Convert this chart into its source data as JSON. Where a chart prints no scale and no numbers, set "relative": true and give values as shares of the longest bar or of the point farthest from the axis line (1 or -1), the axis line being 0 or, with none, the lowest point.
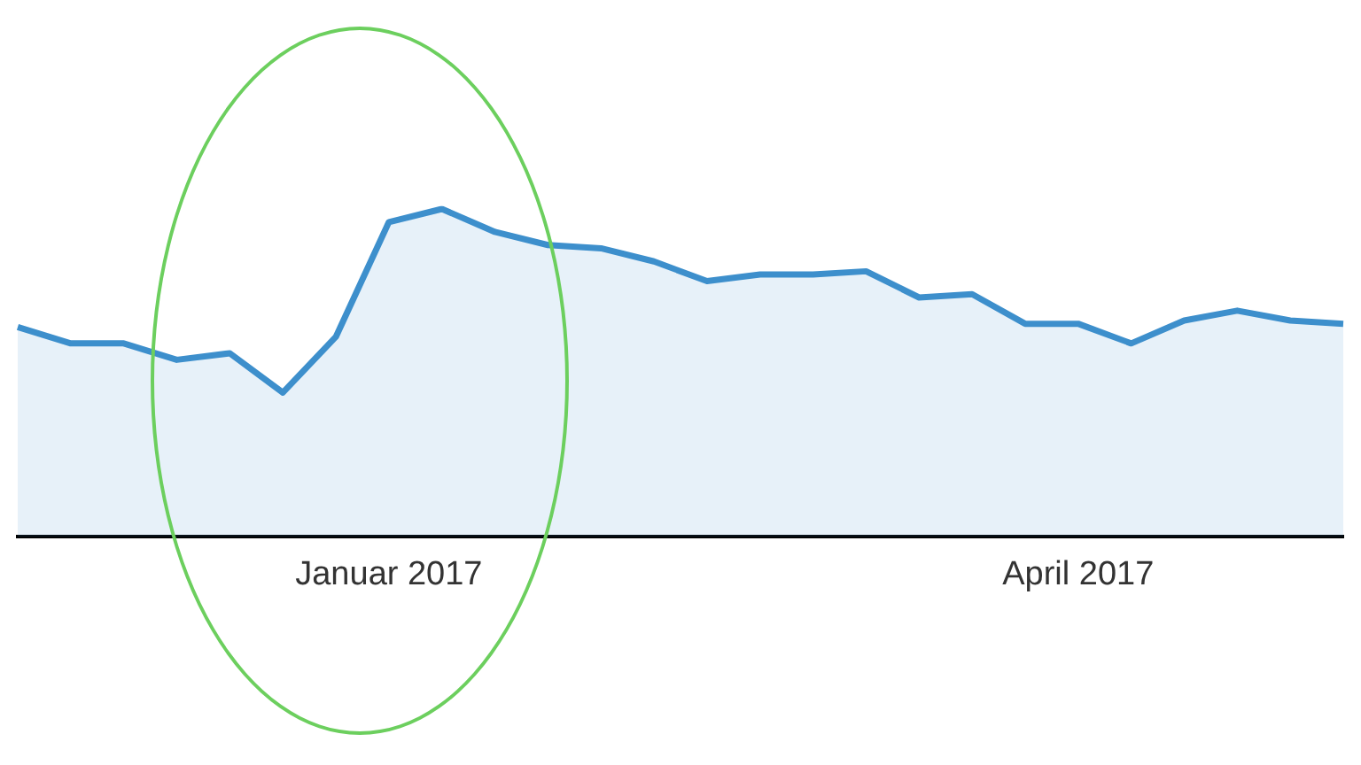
{
  "chart_data": {
    "type": "area",
    "relative": true,
    "legend": false,
    "categories": [
      null,
      null,
      null,
      null,
      null,
      null,
      null,
      "Januar 2017",
      null,
      null,
      null,
      null,
      null,
      null,
      null,
      null,
      null,
      null,
      null,
      null,
      "April 2017",
      null,
      null,
      null,
      null,
      null
    ],
    "series": [
      {
        "color": "#3d8fcc",
        "values": [
          0.64,
          0.59,
          0.59,
          0.54,
          0.56,
          0.44,
          0.61,
          0.96,
          1,
          0.93,
          0.89,
          0.88,
          0.84,
          0.78,
          0.8,
          0.8,
          0.81,
          0.73,
          0.74,
          0.65,
          0.65,
          0.59,
          0.66,
          0.69,
          0.66,
          0.65
        ]
      }
    ]
  }
}
